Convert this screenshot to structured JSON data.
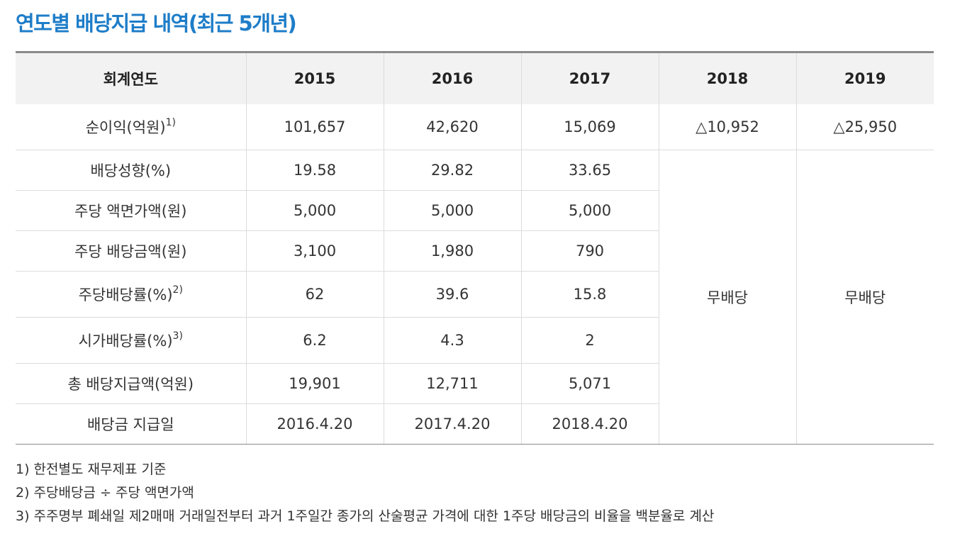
{
  "title": "연도별 배당지급 내역(최근 5개년)",
  "table": {
    "headers": [
      "회계연도",
      "2015",
      "2016",
      "2017",
      "2018",
      "2019"
    ],
    "rows": [
      {
        "label": "순이익(억원)",
        "note": "1)",
        "values": [
          "101,657",
          "42,620",
          "15,069",
          "△10,952",
          "△25,950"
        ]
      },
      {
        "label": "배당성향(%)",
        "note": "",
        "values": [
          "19.58",
          "29.82",
          "33.65"
        ]
      },
      {
        "label": "주당 액면가액(원)",
        "note": "",
        "values": [
          "5,000",
          "5,000",
          "5,000"
        ]
      },
      {
        "label": "주당 배당금액(원)",
        "note": "",
        "values": [
          "3,100",
          "1,980",
          "790"
        ]
      },
      {
        "label": "주당배당률(%)",
        "note": "2)",
        "values": [
          "62",
          "39.6",
          "15.8"
        ]
      },
      {
        "label": "시가배당률(%)",
        "note": "3)",
        "values": [
          "6.2",
          "4.3",
          "2"
        ]
      },
      {
        "label": "총 배당지급액(억원)",
        "note": "",
        "values": [
          "19,901",
          "12,711",
          "5,071"
        ]
      },
      {
        "label": "배당금 지급일",
        "note": "",
        "values": [
          "2016.4.20",
          "2017.4.20",
          "2018.4.20"
        ]
      }
    ],
    "no_dividend": [
      "무배당",
      "무배당"
    ]
  },
  "notes": [
    "1) 한전별도 재무제표 기준",
    "2) 주당배당금 ÷ 주당 액면가액",
    "3) 주주명부 폐쇄일 제2매매 거래일전부터 과거 1주일간 종가의 산술평균 가격에 대한 1주당 배당금의 비율을 백분율로 계산"
  ]
}
